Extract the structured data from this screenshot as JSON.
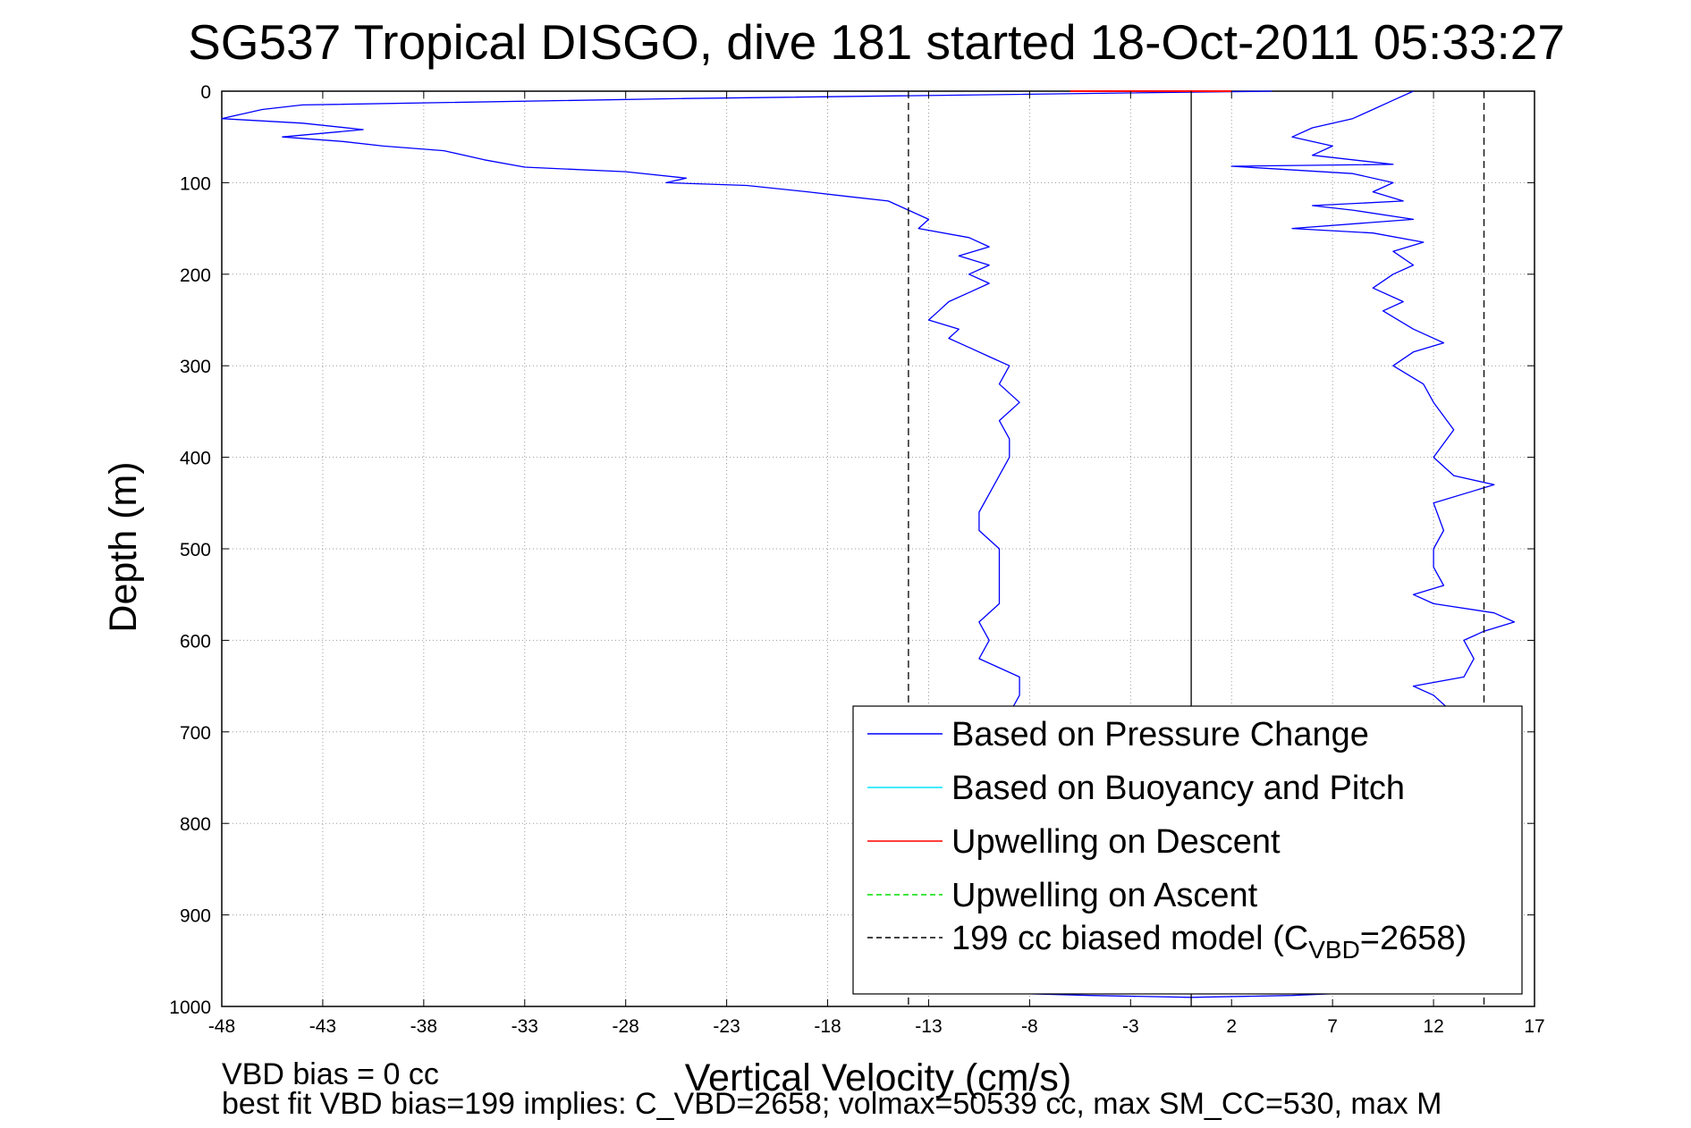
{
  "chart_data": {
    "type": "line",
    "title": "SG537 Tropical DISGO, dive 181 started 18-Oct-2011 05:33:27",
    "xlabel": "Vertical Velocity (cm/s)",
    "ylabel": "Depth (m)",
    "xlim": [
      -48,
      17
    ],
    "ylim": [
      0,
      1000
    ],
    "y_reversed": true,
    "grid": true,
    "x_ticks": [
      -48,
      -43,
      -38,
      -33,
      -28,
      -23,
      -18,
      -13,
      -8,
      -3,
      2,
      7,
      12,
      17
    ],
    "y_ticks": [
      0,
      100,
      200,
      300,
      400,
      500,
      600,
      700,
      800,
      900,
      1000
    ],
    "legend_position": "bottom-right",
    "legend": [
      {
        "label": "Based on Pressure Change",
        "color": "#0000ff",
        "style": "solid"
      },
      {
        "label": "Based on Buoyancy and Pitch",
        "color": "#00e5ff",
        "style": "solid"
      },
      {
        "label": "Upwelling on Descent",
        "color": "#ff0000",
        "style": "solid"
      },
      {
        "label": "Upwelling on Ascent",
        "color": "#00dd00",
        "style": "dashed"
      },
      {
        "label_prefix": "199 cc biased model (C",
        "label_sub": "VBD",
        "label_suffix": "=2658)",
        "color": "#000000",
        "style": "dashed"
      }
    ],
    "series": [
      {
        "name": "Based on Pressure Change (descent)",
        "color": "#0000ff",
        "points": [
          [
            4,
            0
          ],
          [
            -25,
            8
          ],
          [
            -44,
            15
          ],
          [
            -46,
            20
          ],
          [
            -47,
            25
          ],
          [
            -48,
            30
          ],
          [
            -44,
            35
          ],
          [
            -41,
            42
          ],
          [
            -45,
            50
          ],
          [
            -42,
            55
          ],
          [
            -40,
            60
          ],
          [
            -37,
            65
          ],
          [
            -35,
            75
          ],
          [
            -33,
            83
          ],
          [
            -28,
            88
          ],
          [
            -25,
            95
          ],
          [
            -26,
            100
          ],
          [
            -22,
            103
          ],
          [
            -19,
            110
          ],
          [
            -17,
            115
          ],
          [
            -15,
            120
          ],
          [
            -14,
            130
          ],
          [
            -13,
            140
          ],
          [
            -13.5,
            150
          ],
          [
            -11,
            160
          ],
          [
            -10,
            170
          ],
          [
            -11.5,
            180
          ],
          [
            -10,
            190
          ],
          [
            -11,
            200
          ],
          [
            -10,
            210
          ],
          [
            -11,
            220
          ],
          [
            -12,
            230
          ],
          [
            -12.5,
            240
          ],
          [
            -13,
            250
          ],
          [
            -11.5,
            260
          ],
          [
            -12,
            270
          ],
          [
            -11,
            280
          ],
          [
            -10,
            290
          ],
          [
            -9,
            300
          ],
          [
            -9.5,
            320
          ],
          [
            -8.5,
            340
          ],
          [
            -9.5,
            360
          ],
          [
            -9,
            380
          ],
          [
            -9,
            400
          ],
          [
            -9.5,
            420
          ],
          [
            -10,
            440
          ],
          [
            -10.5,
            460
          ],
          [
            -10.5,
            480
          ],
          [
            -9.5,
            500
          ],
          [
            -9.5,
            520
          ],
          [
            -9.5,
            540
          ],
          [
            -9.5,
            560
          ],
          [
            -10.5,
            580
          ],
          [
            -10,
            600
          ],
          [
            -10.5,
            620
          ],
          [
            -8.5,
            640
          ],
          [
            -8.5,
            660
          ],
          [
            -9,
            680
          ]
        ]
      },
      {
        "name": "Based on Pressure Change (ascent)",
        "color": "#0000ff",
        "points": [
          [
            11,
            0
          ],
          [
            10,
            10
          ],
          [
            9,
            20
          ],
          [
            8,
            30
          ],
          [
            6,
            40
          ],
          [
            5,
            50
          ],
          [
            7,
            60
          ],
          [
            6,
            70
          ],
          [
            10,
            80
          ],
          [
            2,
            82
          ],
          [
            8,
            90
          ],
          [
            10,
            100
          ],
          [
            9,
            110
          ],
          [
            10.5,
            120
          ],
          [
            6,
            125
          ],
          [
            8,
            130
          ],
          [
            11,
            140
          ],
          [
            5,
            150
          ],
          [
            9,
            155
          ],
          [
            11.5,
            165
          ],
          [
            10,
            175
          ],
          [
            11,
            190
          ],
          [
            10,
            200
          ],
          [
            9,
            215
          ],
          [
            10.5,
            230
          ],
          [
            9.5,
            240
          ],
          [
            11,
            260
          ],
          [
            12.5,
            275
          ],
          [
            11,
            285
          ],
          [
            10,
            300
          ],
          [
            11.5,
            320
          ],
          [
            12,
            340
          ],
          [
            13,
            370
          ],
          [
            12,
            400
          ],
          [
            13,
            420
          ],
          [
            15,
            430
          ],
          [
            12,
            450
          ],
          [
            12.5,
            480
          ],
          [
            12,
            500
          ],
          [
            12,
            520
          ],
          [
            12.5,
            540
          ],
          [
            11,
            550
          ],
          [
            12,
            560
          ],
          [
            15,
            570
          ],
          [
            16,
            580
          ],
          [
            14.5,
            590
          ],
          [
            13.5,
            600
          ],
          [
            14,
            620
          ],
          [
            13.5,
            640
          ],
          [
            11,
            650
          ],
          [
            12,
            660
          ],
          [
            12.5,
            670
          ],
          [
            13,
            680
          ]
        ]
      },
      {
        "name": "Based on Pressure Change (bottom)",
        "color": "#0000ff",
        "points": [
          [
            -10,
            985
          ],
          [
            -5,
            988
          ],
          [
            0,
            990
          ],
          [
            5,
            988
          ],
          [
            7,
            986
          ]
        ]
      },
      {
        "name": "Upwelling on Descent",
        "color": "#ff0000",
        "points": [
          [
            -6,
            0
          ],
          [
            2,
            0
          ]
        ]
      },
      {
        "name": "199 cc biased model (C_VBD=2658) descent",
        "color": "#000000",
        "style": "dashed",
        "points": [
          [
            -14,
            0
          ],
          [
            -14,
            1000
          ]
        ]
      },
      {
        "name": "199 cc biased model (C_VBD=2658) ascent",
        "color": "#000000",
        "style": "dashed",
        "points": [
          [
            14.5,
            0
          ],
          [
            14.5,
            1000
          ]
        ]
      },
      {
        "name": "zero line",
        "color": "#000000",
        "style": "solid",
        "points": [
          [
            0,
            0
          ],
          [
            0,
            1000
          ]
        ]
      }
    ]
  },
  "footer": {
    "line1": "VBD bias = 0 cc",
    "line2": "best fit VBD bias=199 implies: C_VBD=2658; volmax=50539 cc, max SM_CC=530, max M"
  }
}
